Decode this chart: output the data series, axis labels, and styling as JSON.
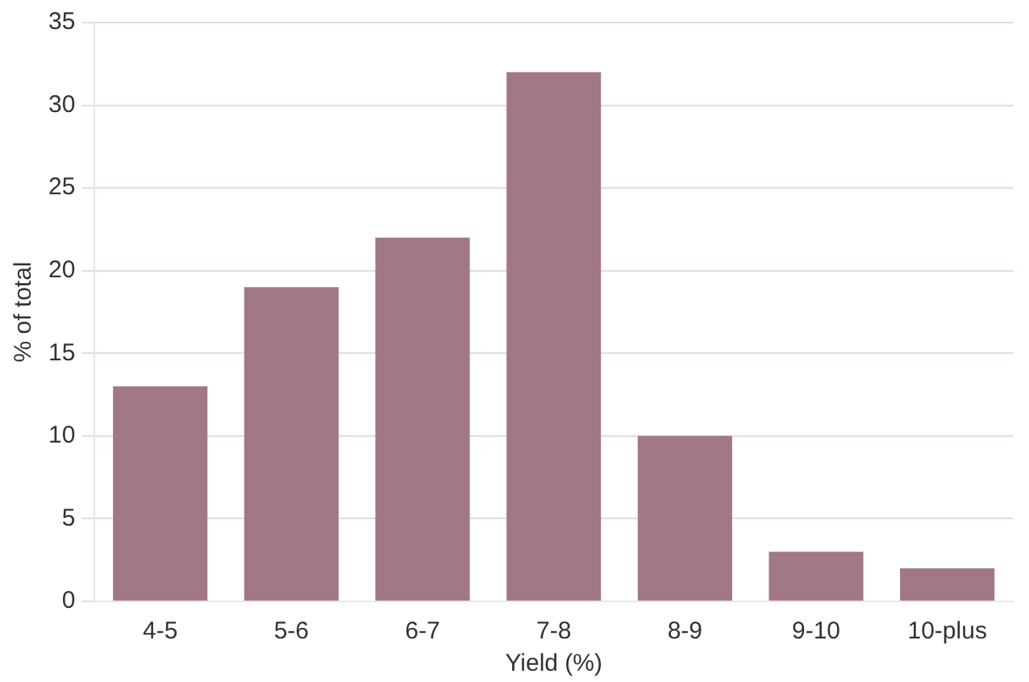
{
  "chart_data": {
    "type": "bar",
    "xlabel": "Yield (%)",
    "ylabel": "% of total",
    "categories": [
      "4-5",
      "5-6",
      "6-7",
      "7-8",
      "8-9",
      "9-10",
      "10-plus"
    ],
    "values": [
      13,
      19,
      22,
      32,
      10,
      3,
      2
    ],
    "color": "#a27786",
    "ylim": [
      0,
      35
    ],
    "yticks": [
      0,
      5,
      10,
      15,
      20,
      25,
      30,
      35
    ],
    "grid": "y",
    "legend": false
  }
}
